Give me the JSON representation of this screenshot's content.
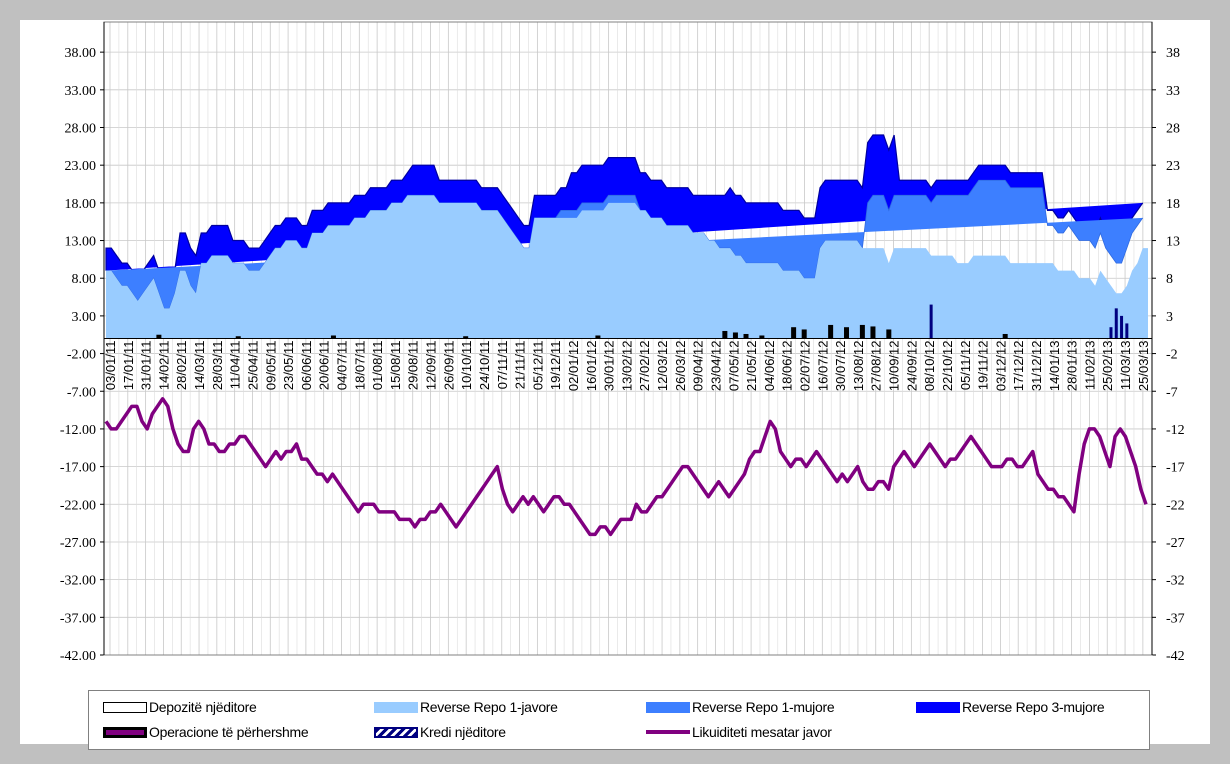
{
  "chart_data": {
    "type": "area",
    "title": "",
    "xlabel": "",
    "ylabel": "",
    "ylim": [
      -42,
      42
    ],
    "y_left_ticks": [
      "38.00",
      "33.00",
      "28.00",
      "23.00",
      "18.00",
      "13.00",
      "8.00",
      "3.00",
      "-2.00",
      "-7.00",
      "-12.00",
      "-17.00",
      "-22.00",
      "-27.00",
      "-32.00",
      "-37.00",
      "-42.00"
    ],
    "y_right_ticks": [
      "38",
      "33",
      "28",
      "23",
      "18",
      "13",
      "8",
      "3",
      "-2",
      "-7",
      "-12",
      "-17",
      "-22",
      "-27",
      "-32",
      "-37",
      "-42"
    ],
    "x_tick_labels": [
      "03/01/11",
      "17/01/11",
      "31/01/11",
      "14/02/11",
      "28/02/11",
      "14/03/11",
      "28/03/11",
      "11/04/11",
      "25/04/11",
      "09/05/11",
      "23/05/11",
      "06/06/11",
      "20/06/11",
      "04/07/11",
      "18/07/11",
      "01/08/11",
      "15/08/11",
      "29/08/11",
      "12/09/11",
      "26/09/11",
      "10/10/11",
      "24/10/11",
      "07/11/11",
      "21/11/11",
      "05/12/11",
      "19/12/11",
      "02/01/12",
      "16/01/12",
      "30/01/12",
      "13/02/12",
      "27/02/12",
      "12/03/12",
      "26/03/12",
      "09/04/12",
      "23/04/12",
      "07/05/12",
      "21/05/12",
      "04/06/12",
      "18/06/12",
      "02/07/12",
      "16/07/12",
      "30/07/12",
      "13/08/12",
      "27/08/12",
      "10/09/12",
      "24/09/12",
      "08/10/12",
      "22/10/12",
      "05/11/12",
      "19/11/12",
      "03/12/12",
      "17/12/12",
      "31/12/12",
      "14/01/13",
      "28/01/13",
      "11/02/13",
      "25/02/13",
      "11/03/13",
      "25/03/13"
    ],
    "legend_placement": "bottom",
    "legend": {
      "depozite": "Depozitë njëditore",
      "rr1j": "Reverse Repo 1-javore",
      "rr1m": "Reverse Repo 1-mujore",
      "rr3m": "Reverse Repo 3-mujore",
      "operacione": "Operacione të përhershme",
      "kredi": "Kredi njëditore",
      "likuiditeti": "Likuiditeti mesatar javor"
    },
    "colors": {
      "rr1j": "#99ccff",
      "rr1m": "#3d7fff",
      "rr3m": "#0000ff",
      "likuiditeti": "#800080",
      "operacione": "#000000",
      "kredi": "#000080",
      "depozite": "#ffffff"
    },
    "series": [
      {
        "name": "Reverse Repo 1-javore",
        "values": [
          9,
          9,
          8,
          7,
          7,
          6,
          5,
          6,
          7,
          8,
          6,
          4,
          4,
          6,
          9,
          9,
          7,
          6,
          10,
          10,
          11,
          11,
          11,
          11,
          10,
          10,
          10,
          9,
          9,
          9,
          10,
          11,
          12,
          12,
          13,
          13,
          13,
          12,
          12,
          14,
          14,
          14,
          15,
          15,
          15,
          15,
          15,
          16,
          16,
          16,
          17,
          17,
          17,
          17,
          18,
          18,
          18,
          19,
          19,
          19,
          19,
          19,
          19,
          18,
          18,
          18,
          18,
          18,
          18,
          18,
          18,
          17,
          17,
          17,
          17,
          16,
          15,
          14,
          13,
          12,
          12,
          16,
          16,
          16,
          16,
          16,
          16,
          16,
          16,
          16,
          17,
          17,
          17,
          17,
          17,
          18,
          18,
          18,
          18,
          18,
          18,
          17,
          17,
          16,
          16,
          16,
          15,
          15,
          15,
          15,
          15,
          14,
          14,
          14,
          13,
          13,
          12,
          12,
          12,
          11,
          11,
          10,
          10,
          10,
          10,
          10,
          10,
          10,
          9,
          9,
          9,
          9,
          8,
          8,
          8,
          12,
          13,
          13,
          13,
          13,
          13,
          13,
          13,
          12,
          12,
          12,
          12,
          12,
          10,
          12,
          12,
          12,
          12,
          12,
          12,
          12,
          11,
          11,
          11,
          11,
          11,
          10,
          10,
          10,
          11,
          11,
          11,
          11,
          11,
          11,
          11,
          10,
          10,
          10,
          10,
          10,
          10,
          10,
          10,
          10,
          9,
          9,
          9,
          9,
          8,
          8,
          8,
          7,
          9,
          8,
          7,
          6,
          6,
          7,
          9,
          10,
          12,
          12
        ]
      },
      {
        "name": "Reverse Repo 1-mujore",
        "values": [
          0,
          0,
          0,
          0,
          0,
          0,
          0,
          0,
          0,
          0,
          0,
          0,
          0,
          0,
          0,
          0,
          0,
          0,
          0,
          0,
          0,
          0,
          0,
          0,
          0,
          0,
          0,
          0,
          0,
          0,
          0,
          0,
          0,
          0,
          0,
          0,
          0,
          0,
          0,
          0,
          0,
          0,
          0,
          0,
          0,
          0,
          0,
          0,
          0,
          0,
          0,
          0,
          0,
          0,
          0,
          0,
          0,
          0,
          0,
          0,
          0,
          0,
          0,
          0,
          0,
          0,
          0,
          0,
          0,
          0,
          0,
          0,
          0,
          0,
          0,
          0,
          0,
          0,
          0,
          0,
          0,
          0,
          0,
          0,
          0,
          0,
          1,
          1,
          1,
          1,
          1,
          1,
          1,
          1,
          1,
          1,
          1,
          1,
          1,
          1,
          1,
          0,
          0,
          0,
          0,
          0,
          0,
          0,
          0,
          0,
          0,
          0,
          0,
          0,
          0,
          0,
          0,
          0,
          0,
          0,
          0,
          0,
          0,
          0,
          0,
          0,
          0,
          0,
          0,
          0,
          0,
          0,
          0,
          0,
          0,
          0,
          0,
          0,
          0,
          0,
          0,
          0,
          0,
          0,
          6,
          7,
          7,
          7,
          7,
          7,
          7,
          7,
          7,
          7,
          7,
          7,
          7,
          8,
          8,
          8,
          8,
          9,
          9,
          9,
          9,
          10,
          10,
          10,
          10,
          10,
          10,
          10,
          10,
          10,
          10,
          10,
          10,
          10,
          5,
          5,
          5,
          5,
          6,
          5,
          5,
          5,
          5,
          5,
          5,
          4,
          4,
          4,
          4,
          5,
          5,
          5,
          4
        ]
      },
      {
        "name": "Reverse Repo 3-mujore",
        "values": [
          3,
          3,
          3,
          3,
          3,
          3,
          3,
          3,
          3,
          3,
          3,
          3,
          3,
          3,
          5,
          5,
          5,
          5,
          4,
          4,
          4,
          4,
          4,
          4,
          3,
          3,
          3,
          3,
          3,
          3,
          3,
          3,
          3,
          3,
          3,
          3,
          3,
          3,
          3,
          3,
          3,
          3,
          3,
          3,
          3,
          3,
          3,
          3,
          3,
          3,
          3,
          3,
          3,
          3,
          3,
          3,
          3,
          3,
          4,
          4,
          4,
          4,
          4,
          3,
          3,
          3,
          3,
          3,
          3,
          3,
          3,
          3,
          3,
          3,
          3,
          3,
          3,
          3,
          3,
          3,
          3,
          3,
          3,
          3,
          3,
          3,
          3,
          3,
          5,
          5,
          5,
          5,
          5,
          5,
          5,
          5,
          5,
          5,
          5,
          5,
          5,
          5,
          5,
          5,
          5,
          5,
          5,
          5,
          5,
          5,
          5,
          5,
          5,
          5,
          6,
          6,
          7,
          7,
          8,
          8,
          8,
          8,
          8,
          8,
          8,
          8,
          8,
          8,
          8,
          8,
          8,
          8,
          8,
          8,
          8,
          8,
          8,
          8,
          8,
          8,
          8,
          8,
          8,
          8,
          8,
          8,
          8,
          8,
          8,
          8,
          2,
          2,
          2,
          2,
          2,
          2,
          2,
          2,
          2,
          2,
          2,
          2,
          2,
          2,
          2,
          2,
          2,
          2,
          2,
          2,
          2,
          2,
          2,
          2,
          2,
          2,
          2,
          2,
          2,
          2,
          2,
          2,
          2,
          2,
          2,
          2,
          2,
          2,
          2,
          2,
          2,
          2,
          2,
          2,
          2,
          2,
          2,
          2,
          2,
          2,
          2,
          2,
          2
        ]
      },
      {
        "name": "Likuiditeti mesatar javor",
        "values": [
          -11,
          -12,
          -12,
          -11,
          -10,
          -9,
          -9,
          -11,
          -12,
          -10,
          -9,
          -8,
          -9,
          -12,
          -14,
          -15,
          -15,
          -12,
          -11,
          -12,
          -14,
          -14,
          -15,
          -15,
          -14,
          -14,
          -13,
          -13,
          -14,
          -15,
          -16,
          -17,
          -16,
          -15,
          -16,
          -15,
          -15,
          -14,
          -16,
          -16,
          -17,
          -18,
          -18,
          -19,
          -18,
          -19,
          -20,
          -21,
          -22,
          -23,
          -22,
          -22,
          -22,
          -23,
          -23,
          -23,
          -23,
          -24,
          -24,
          -24,
          -25,
          -24,
          -24,
          -23,
          -23,
          -22,
          -23,
          -24,
          -25,
          -24,
          -23,
          -22,
          -21,
          -20,
          -19,
          -18,
          -17,
          -20,
          -22,
          -23,
          -22,
          -21,
          -22,
          -21,
          -22,
          -23,
          -22,
          -21,
          -21,
          -22,
          -22,
          -23,
          -24,
          -25,
          -26,
          -26,
          -25,
          -25,
          -26,
          -25,
          -24,
          -24,
          -24,
          -22,
          -23,
          -23,
          -22,
          -21,
          -21,
          -20,
          -19,
          -18,
          -17,
          -17,
          -18,
          -19,
          -20,
          -21,
          -20,
          -19,
          -20,
          -21,
          -20,
          -19,
          -18,
          -16,
          -15,
          -15,
          -13,
          -11,
          -12,
          -15,
          -16,
          -17,
          -16,
          -16,
          -17,
          -16,
          -15,
          -16,
          -17,
          -18,
          -19,
          -18,
          -19,
          -18,
          -17,
          -19,
          -20,
          -20,
          -19,
          -19,
          -20,
          -17,
          -16,
          -15,
          -16,
          -17,
          -16,
          -15,
          -14,
          -15,
          -16,
          -17,
          -16,
          -16,
          -15,
          -14,
          -13,
          -14,
          -15,
          -16,
          -17,
          -17,
          -17,
          -16,
          -16,
          -17,
          -17,
          -16,
          -15,
          -18,
          -19,
          -20,
          -20,
          -21,
          -21,
          -22,
          -23,
          -18,
          -14,
          -12,
          -12,
          -13,
          -15,
          -17,
          -13,
          -12,
          -13,
          -15,
          -17,
          -20,
          -22
        ]
      }
    ],
    "point_spikes": {
      "operacione": [
        [
          10,
          0.5
        ],
        [
          25,
          0.3
        ],
        [
          43,
          0.4
        ],
        [
          68,
          0.3
        ],
        [
          93,
          0.4
        ],
        [
          117,
          1
        ],
        [
          119,
          0.8
        ],
        [
          121,
          0.6
        ],
        [
          124,
          0.4
        ],
        [
          130,
          1.5
        ],
        [
          132,
          1.2
        ],
        [
          137,
          1.8
        ],
        [
          140,
          1.5
        ],
        [
          143,
          1.8
        ],
        [
          145,
          1.6
        ],
        [
          148,
          1.2
        ],
        [
          170,
          0.6
        ]
      ],
      "kredi": [
        [
          156,
          4.5
        ],
        [
          190,
          1.5
        ],
        [
          191,
          4
        ],
        [
          192,
          3
        ],
        [
          193,
          2
        ]
      ]
    }
  }
}
